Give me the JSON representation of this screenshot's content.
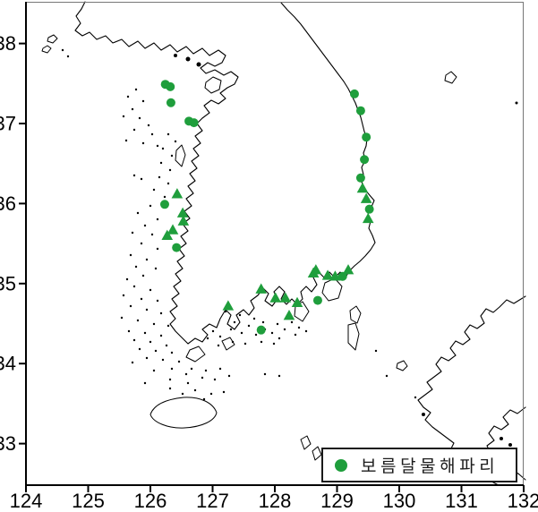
{
  "figure": {
    "marker_color": "#1f9e3c",
    "coast_color": "#000000",
    "background": "#ffffff"
  },
  "legend": {
    "label": "보름달물해파리",
    "symbol": "green-circle-icon"
  },
  "axes": {
    "x": {
      "ticks": [
        "124",
        "125",
        "126",
        "127",
        "128",
        "129",
        "130",
        "131",
        "132"
      ],
      "range": [
        124,
        132
      ]
    },
    "y": {
      "ticks": [
        "38",
        "37",
        "36",
        "35",
        "34",
        "33"
      ],
      "range": [
        32.5,
        38.5
      ]
    }
  },
  "chart_data": {
    "type": "scatter",
    "title": "",
    "legend_position": "bottom-right",
    "xlim": [
      124,
      132
    ],
    "ylim": [
      32.5,
      38.5
    ],
    "series": [
      {
        "name": "보름달물해파리",
        "marker": "circle",
        "points": [
          [
            126.24,
            37.49
          ],
          [
            126.32,
            37.46
          ],
          [
            126.33,
            37.26
          ],
          [
            126.62,
            37.03
          ],
          [
            126.7,
            37.01
          ],
          [
            126.23,
            35.99
          ],
          [
            126.42,
            35.45
          ],
          [
            127.78,
            34.42
          ],
          [
            128.69,
            34.79
          ],
          [
            129.09,
            35.09
          ],
          [
            129.28,
            37.37
          ],
          [
            129.38,
            37.16
          ],
          [
            129.47,
            36.83
          ],
          [
            129.44,
            36.55
          ],
          [
            129.38,
            36.32
          ],
          [
            129.52,
            35.93
          ]
        ]
      },
      {
        "name": "보름달물해파리",
        "marker": "triangle",
        "points": [
          [
            126.43,
            36.12
          ],
          [
            126.52,
            35.88
          ],
          [
            126.53,
            35.78
          ],
          [
            126.36,
            35.67
          ],
          [
            126.27,
            35.6
          ],
          [
            127.25,
            34.72
          ],
          [
            127.78,
            34.93
          ],
          [
            128.01,
            34.82
          ],
          [
            128.17,
            34.82
          ],
          [
            128.36,
            34.76
          ],
          [
            128.23,
            34.6
          ],
          [
            128.62,
            35.13
          ],
          [
            128.66,
            35.17
          ],
          [
            128.85,
            35.1
          ],
          [
            128.97,
            35.09
          ],
          [
            129.18,
            35.17
          ],
          [
            129.41,
            36.19
          ],
          [
            129.47,
            36.06
          ],
          [
            129.5,
            35.81
          ]
        ]
      }
    ]
  }
}
